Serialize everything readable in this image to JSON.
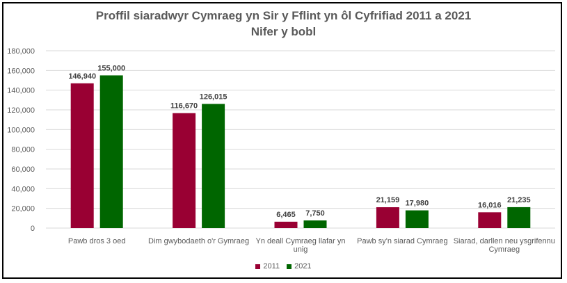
{
  "chart_data": {
    "type": "bar",
    "title": "Proffil siaradwyr Cymraeg yn Sir y Fflint yn ôl Cyfrifiad 2011 a 2021",
    "subtitle": "Nifer y bobl",
    "categories": [
      [
        "Pawb dros 3 oed"
      ],
      [
        "Dim gwybodaeth o'r Gymraeg"
      ],
      [
        "Yn deall Cymraeg llafar yn",
        "unig"
      ],
      [
        "Pawb sy'n siarad Cymraeg"
      ],
      [
        "Siarad, darllen neu ysgrifennu",
        "Cymraeg"
      ]
    ],
    "series": [
      {
        "name": "2011",
        "color": "#990033",
        "values": [
          146940,
          116670,
          6465,
          21159,
          16016
        ],
        "labels": [
          "146,940",
          "116,670",
          "6,465",
          "21,159",
          "16,016"
        ]
      },
      {
        "name": "2021",
        "color": "#006600",
        "values": [
          155000,
          126015,
          7750,
          17980,
          21235
        ],
        "labels": [
          "155,000",
          "126,015",
          "7,750",
          "17,980",
          "21,235"
        ]
      }
    ],
    "ylim": [
      0,
      180000
    ],
    "yticks": [
      0,
      20000,
      40000,
      60000,
      80000,
      100000,
      120000,
      140000,
      160000,
      180000
    ],
    "ytick_labels": [
      "0",
      "20,000",
      "40,000",
      "60,000",
      "80,000",
      "100,000",
      "120,000",
      "140,000",
      "160,000",
      "180,000"
    ],
    "grid": true,
    "legend": "bottom"
  }
}
